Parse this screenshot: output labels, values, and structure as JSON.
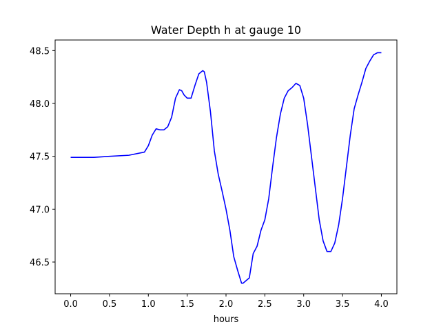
{
  "chart_data": {
    "type": "line",
    "title": "Water Depth h at gauge 10",
    "xlabel": "hours",
    "ylabel": "",
    "xlim": [
      -0.2,
      4.2
    ],
    "ylim": [
      46.2,
      48.6
    ],
    "grid": false,
    "xticks": [
      0.0,
      0.5,
      1.0,
      1.5,
      2.0,
      2.5,
      3.0,
      3.5,
      4.0
    ],
    "xtick_labels": [
      "0.0",
      "0.5",
      "1.0",
      "1.5",
      "2.0",
      "2.5",
      "3.0",
      "3.5",
      "4.0"
    ],
    "yticks": [
      46.5,
      47.0,
      47.5,
      48.0,
      48.5
    ],
    "ytick_labels": [
      "46.5",
      "47.0",
      "47.5",
      "48.0",
      "48.5"
    ],
    "series": [
      {
        "name": "h",
        "color": "#0000ff",
        "x": [
          0.0,
          0.3,
          0.5,
          0.75,
          0.95,
          1.0,
          1.05,
          1.1,
          1.15,
          1.2,
          1.25,
          1.3,
          1.35,
          1.4,
          1.43,
          1.46,
          1.5,
          1.55,
          1.6,
          1.65,
          1.7,
          1.72,
          1.75,
          1.8,
          1.85,
          1.9,
          1.95,
          2.0,
          2.05,
          2.1,
          2.15,
          2.2,
          2.22,
          2.3,
          2.35,
          2.4,
          2.45,
          2.5,
          2.55,
          2.6,
          2.65,
          2.7,
          2.75,
          2.8,
          2.85,
          2.9,
          2.95,
          3.0,
          3.05,
          3.1,
          3.15,
          3.2,
          3.25,
          3.3,
          3.35,
          3.4,
          3.45,
          3.5,
          3.55,
          3.6,
          3.65,
          3.7,
          3.75,
          3.8,
          3.85,
          3.9,
          3.95,
          4.0
        ],
        "y": [
          47.49,
          47.49,
          47.5,
          47.51,
          47.54,
          47.6,
          47.7,
          47.76,
          47.75,
          47.75,
          47.78,
          47.87,
          48.05,
          48.13,
          48.12,
          48.08,
          48.05,
          48.05,
          48.17,
          48.28,
          48.31,
          48.3,
          48.2,
          47.92,
          47.55,
          47.33,
          47.17,
          47.0,
          46.8,
          46.55,
          46.42,
          46.3,
          46.3,
          46.35,
          46.58,
          46.65,
          46.8,
          46.9,
          47.1,
          47.4,
          47.68,
          47.9,
          48.05,
          48.12,
          48.15,
          48.19,
          48.17,
          48.05,
          47.8,
          47.5,
          47.2,
          46.9,
          46.7,
          46.6,
          46.6,
          46.68,
          46.85,
          47.1,
          47.4,
          47.7,
          47.95,
          48.08,
          48.2,
          48.33,
          48.4,
          48.46,
          48.48,
          48.48
        ]
      }
    ]
  }
}
